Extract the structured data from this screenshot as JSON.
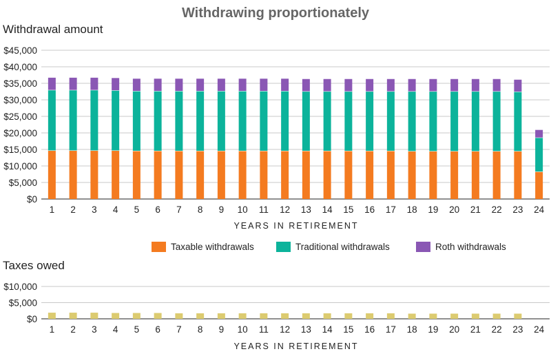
{
  "title": "Withdrawing proportionately",
  "chart_data": [
    {
      "type": "bar",
      "stacked": true,
      "title": "Withdrawal amount",
      "xlabel": "YEARS IN RETIREMENT",
      "ylabel": "",
      "ylim": [
        0,
        45000
      ],
      "yticks": [
        0,
        5000,
        10000,
        15000,
        20000,
        25000,
        30000,
        35000,
        40000,
        45000
      ],
      "ytick_labels": [
        "$0",
        "$5,000",
        "$10,000",
        "$15,000",
        "$20,000",
        "$25,000",
        "$30,000",
        "$35,000",
        "$40,000",
        "$45,000"
      ],
      "grid": true,
      "legend_position": "bottom",
      "categories": [
        "1",
        "2",
        "3",
        "4",
        "5",
        "6",
        "7",
        "8",
        "9",
        "10",
        "11",
        "12",
        "13",
        "14",
        "15",
        "16",
        "17",
        "18",
        "19",
        "20",
        "21",
        "22",
        "23",
        "24"
      ],
      "series": [
        {
          "name": "Taxable withdrawals",
          "color": "#f47b20",
          "values": [
            14700,
            14700,
            14700,
            14700,
            14600,
            14600,
            14600,
            14600,
            14600,
            14600,
            14600,
            14600,
            14600,
            14600,
            14600,
            14600,
            14600,
            14500,
            14500,
            14500,
            14500,
            14500,
            14500,
            8300
          ]
        },
        {
          "name": "Traditional withdrawals",
          "color": "#0cb39b",
          "values": [
            18300,
            18300,
            18300,
            18200,
            18100,
            18100,
            18100,
            18100,
            18100,
            18100,
            18100,
            18100,
            18000,
            18000,
            18000,
            18000,
            18000,
            18100,
            18100,
            18100,
            18100,
            18100,
            18000,
            10300
          ]
        },
        {
          "name": "Roth withdrawals",
          "color": "#8a57b4",
          "values": [
            3700,
            3700,
            3700,
            3700,
            3700,
            3700,
            3700,
            3700,
            3700,
            3700,
            3700,
            3700,
            3700,
            3700,
            3700,
            3700,
            3700,
            3700,
            3700,
            3700,
            3700,
            3700,
            3600,
            2300
          ]
        }
      ]
    },
    {
      "type": "bar",
      "title": "Taxes owed",
      "xlabel": "YEARS IN RETIREMENT",
      "ylabel": "",
      "ylim": [
        0,
        10000
      ],
      "yticks": [
        0,
        5000,
        10000
      ],
      "ytick_labels": [
        "$0",
        "$5,000",
        "$10,000"
      ],
      "grid": true,
      "categories": [
        "1",
        "2",
        "3",
        "4",
        "5",
        "6",
        "7",
        "8",
        "9",
        "10",
        "11",
        "12",
        "13",
        "14",
        "15",
        "16",
        "17",
        "18",
        "19",
        "20",
        "21",
        "22",
        "23",
        "24"
      ],
      "series": [
        {
          "name": "Taxes owed",
          "color": "#dccb70",
          "values": [
            1900,
            1900,
            1900,
            1800,
            1800,
            1800,
            1700,
            1700,
            1700,
            1700,
            1700,
            1700,
            1700,
            1700,
            1700,
            1700,
            1700,
            1600,
            1600,
            1600,
            1600,
            1600,
            1600,
            0
          ]
        }
      ]
    }
  ]
}
